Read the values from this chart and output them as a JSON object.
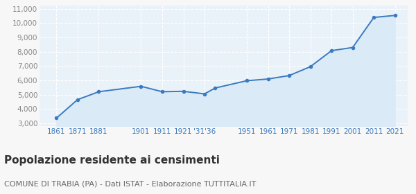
{
  "years": [
    1861,
    1871,
    1881,
    1901,
    1911,
    1921,
    1931,
    1936,
    1951,
    1961,
    1971,
    1981,
    1991,
    2001,
    2011,
    2021
  ],
  "population": [
    3360,
    4650,
    5200,
    5580,
    5200,
    5230,
    5050,
    5460,
    5970,
    6090,
    6330,
    6950,
    8070,
    8290,
    10390,
    10530
  ],
  "xlim": [
    1853,
    2027
  ],
  "ylim": [
    2800,
    11200
  ],
  "yticks": [
    3000,
    4000,
    5000,
    6000,
    7000,
    8000,
    9000,
    10000,
    11000
  ],
  "x_ticks": [
    1861,
    1871,
    1881,
    1901,
    1911,
    1921,
    1931,
    1951,
    1961,
    1971,
    1981,
    1991,
    2001,
    2011,
    2021
  ],
  "x_labels": [
    "1861",
    "1871",
    "1881",
    "1901",
    "1911",
    "1921",
    "'31'36",
    "1951",
    "1961",
    "1971",
    "1981",
    "1991",
    "2001",
    "2011",
    "2021"
  ],
  "line_color": "#3a7abf",
  "fill_color": "#daeaf7",
  "marker_color": "#3a7abf",
  "fig_bg_color": "#f7f7f7",
  "plot_bg_color": "#eaf2f9",
  "grid_color": "#ffffff",
  "tick_color_x": "#3a7abf",
  "tick_color_y": "#888888",
  "title": "Popolazione residente ai censimenti",
  "subtitle": "COMUNE DI TRABIA (PA) - Dati ISTAT - Elaborazione TUTTITALIA.IT",
  "title_fontsize": 11,
  "subtitle_fontsize": 8,
  "axis_fontsize": 7.5
}
